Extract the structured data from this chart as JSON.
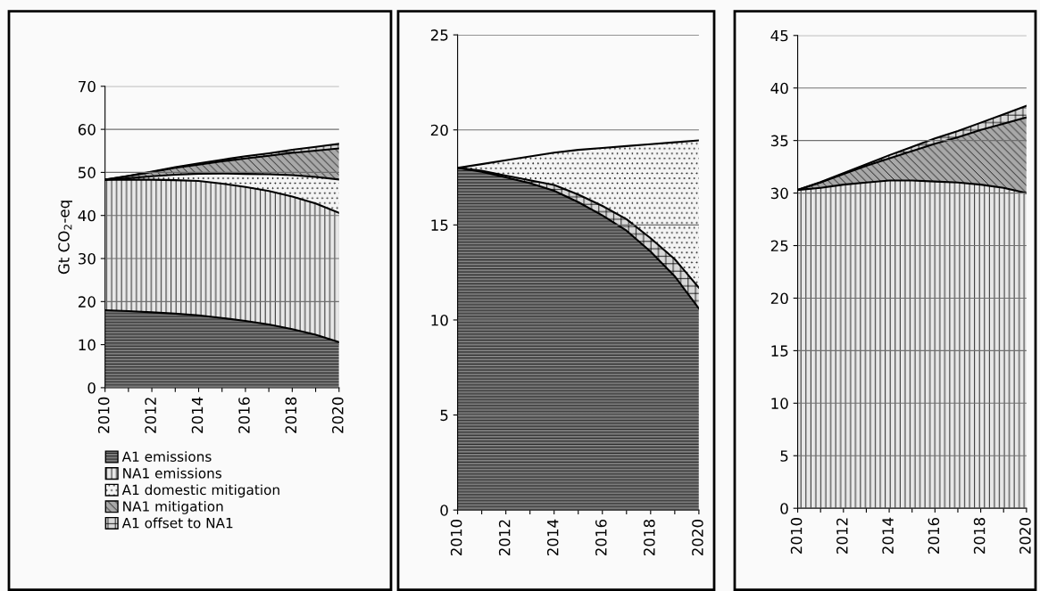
{
  "chart_data": [
    {
      "type": "area",
      "stacked": true,
      "ylabel": "Gt CO$_{2}$-eq",
      "x": [
        2010,
        2011,
        2012,
        2013,
        2014,
        2015,
        2016,
        2017,
        2018,
        2019,
        2020
      ],
      "xlim": [
        2010,
        2020
      ],
      "xticks": [
        2010,
        {
          "value": 2011,
          "label": null
        },
        2012,
        {
          "value": 2013,
          "label": null
        },
        2014,
        {
          "value": 2015,
          "label": null
        },
        2016,
        {
          "value": 2017,
          "label": null
        },
        2018,
        {
          "value": 2019,
          "label": null
        },
        2020
      ],
      "ylim": [
        0,
        70
      ],
      "yticks": [
        0,
        10,
        20,
        30,
        40,
        50,
        60,
        70
      ],
      "grid": "y",
      "legend": "bottom",
      "series": [
        {
          "name": "A1 emissions",
          "color": "#808080",
          "values": [
            18,
            17.8,
            17.5,
            17.2,
            16.8,
            16.2,
            15.5,
            14.7,
            13.6,
            12.3,
            10.6
          ]
        },
        {
          "name": "NA1 emissions",
          "color": "#e8e8e8",
          "values": [
            30.3,
            30.5,
            30.8,
            31.0,
            31.2,
            31.2,
            31.1,
            31.0,
            30.8,
            30.5,
            30.0
          ]
        },
        {
          "name": "A1 domestic mitigation",
          "color": "#f4f4f4",
          "values": [
            0,
            0.35,
            0.8,
            1.25,
            1.7,
            2.35,
            3.05,
            3.85,
            4.95,
            6.15,
            7.75
          ]
        },
        {
          "name": "NA1 mitigation",
          "color": "#a8a8a8",
          "values": [
            0,
            0.5,
            1.0,
            1.6,
            2.1,
            2.8,
            3.6,
            4.3,
            5.2,
            6.1,
            7.2
          ]
        },
        {
          "name": "A1 offset to NA1",
          "color": "#d8d8d8",
          "values": [
            0,
            0.05,
            0.1,
            0.15,
            0.3,
            0.4,
            0.5,
            0.6,
            0.7,
            0.9,
            1.1
          ]
        }
      ]
    },
    {
      "type": "area",
      "stacked": true,
      "x": [
        2010,
        2011,
        2012,
        2013,
        2014,
        2015,
        2016,
        2017,
        2018,
        2019,
        2020
      ],
      "xlim": [
        2010,
        2020
      ],
      "xticks": [
        2010,
        {
          "value": 2011,
          "label": null
        },
        2012,
        {
          "value": 2013,
          "label": null
        },
        2014,
        {
          "value": 2015,
          "label": null
        },
        2016,
        {
          "value": 2017,
          "label": null
        },
        2018,
        {
          "value": 2019,
          "label": null
        },
        2020
      ],
      "ylim": [
        0,
        25
      ],
      "yticks": [
        0,
        5,
        10,
        15,
        20,
        25
      ],
      "grid": "y",
      "series": [
        {
          "color": "#808080",
          "values": [
            18,
            17.8,
            17.5,
            17.2,
            16.8,
            16.2,
            15.5,
            14.7,
            13.6,
            12.3,
            10.6
          ]
        },
        {
          "color": "#d8d8d8",
          "values": [
            0,
            0.05,
            0.1,
            0.15,
            0.3,
            0.4,
            0.5,
            0.6,
            0.7,
            0.9,
            1.1
          ]
        },
        {
          "color": "#f4f4f4",
          "values": [
            0,
            0.35,
            0.8,
            1.25,
            1.7,
            2.35,
            3.05,
            3.85,
            4.95,
            6.15,
            7.75
          ]
        }
      ]
    },
    {
      "type": "area",
      "stacked": true,
      "x": [
        2010,
        2011,
        2012,
        2013,
        2014,
        2015,
        2016,
        2017,
        2018,
        2019,
        2020
      ],
      "xlim": [
        2010,
        2020
      ],
      "xticks": [
        2010,
        {
          "value": 2011,
          "label": null
        },
        2012,
        {
          "value": 2013,
          "label": null
        },
        2014,
        {
          "value": 2015,
          "label": null
        },
        2016,
        {
          "value": 2017,
          "label": null
        },
        2018,
        {
          "value": 2019,
          "label": null
        },
        2020
      ],
      "ylim": [
        0,
        45
      ],
      "yticks": [
        0,
        5,
        10,
        15,
        20,
        25,
        30,
        35,
        40,
        45
      ],
      "grid": "y",
      "series": [
        {
          "color": "#e8e8e8",
          "values": [
            30.3,
            30.5,
            30.8,
            31.0,
            31.2,
            31.2,
            31.1,
            31.0,
            30.8,
            30.5,
            30.0
          ]
        },
        {
          "color": "#a8a8a8",
          "values": [
            0,
            0.5,
            1.0,
            1.6,
            2.1,
            2.8,
            3.6,
            4.3,
            5.2,
            6.1,
            7.2
          ]
        },
        {
          "color": "#d8d8d8",
          "values": [
            0,
            0.05,
            0.1,
            0.15,
            0.3,
            0.4,
            0.5,
            0.6,
            0.7,
            0.9,
            1.1
          ]
        }
      ]
    }
  ]
}
